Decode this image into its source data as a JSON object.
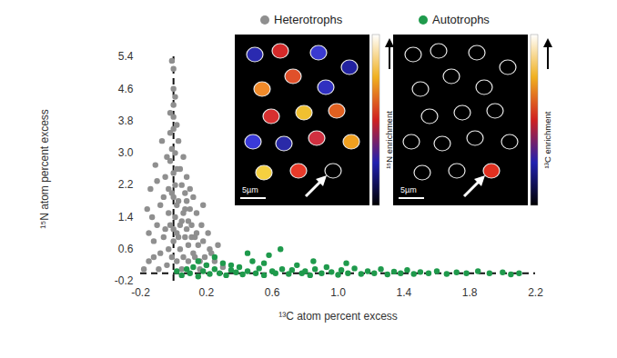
{
  "chart_data": {
    "type": "scatter",
    "x_label": "¹³C atom percent excess",
    "y_label": "¹⁵N atom percent excess",
    "xlim": [
      -0.2,
      2.2
    ],
    "ylim": [
      -0.2,
      5.4
    ],
    "xticks": [
      -0.2,
      0.2,
      0.6,
      {
        "value": 1,
        "label": "1.0"
      },
      1.4,
      1.8,
      2.2
    ],
    "yticks": [
      -0.2,
      0.6,
      1.4,
      2.2,
      {
        "value": 3,
        "label": "3.0"
      },
      3.8,
      4.6,
      5.4
    ],
    "grid": false,
    "legend": "top",
    "reference_lines": [
      {
        "axis": "x",
        "value": 0,
        "line_style": "dashed"
      },
      {
        "axis": "y",
        "value": 0,
        "line_style": "dashed"
      }
    ],
    "series": [
      {
        "name": "Heterotrophs",
        "color": "#8f8f8f",
        "marker": "circle",
        "x": [
          -0.15,
          -0.12,
          -0.1,
          -0.08,
          -0.06,
          -0.05,
          -0.04,
          -0.03,
          -0.02,
          -0.01,
          0.0,
          0.0,
          0.0,
          0.01,
          0.02,
          0.03,
          0.04,
          0.05,
          0.06,
          0.07,
          0.08,
          0.09,
          0.1,
          0.12,
          0.14,
          0.16,
          0.18,
          0.2,
          0.22,
          0.25,
          0.3,
          -0.18,
          -0.16,
          -0.14,
          -0.13,
          -0.11,
          -0.09,
          -0.07,
          -0.06,
          -0.05,
          -0.04,
          -0.03,
          -0.02,
          -0.02,
          -0.01,
          -0.01,
          0.0,
          0.0,
          0.0,
          0.0,
          0.01,
          0.01,
          0.02,
          0.02,
          0.03,
          0.03,
          0.04,
          0.04,
          0.05,
          0.05,
          0.06,
          0.06,
          0.07,
          0.08,
          0.08,
          0.09,
          0.1,
          0.11,
          0.11,
          0.12,
          0.13,
          0.14,
          0.15,
          0.17,
          0.19,
          0.21,
          0.23,
          0.27,
          -0.1,
          -0.08,
          -0.12,
          -0.15,
          0.0,
          0.0,
          -0.03,
          0.02,
          0.07,
          0.09,
          0.13,
          0.16,
          0.18,
          -0.02,
          0.01,
          -0.01,
          0.02
        ],
        "values": [
          0.3,
          0.8,
          1.2,
          0.5,
          1.9,
          2.4,
          0.2,
          1.5,
          2.8,
          3.1,
          3.6,
          4.2,
          5.1,
          2.2,
          1.7,
          0.9,
          2.6,
          1.3,
          0.4,
          2.0,
          1.1,
          0.7,
          1.6,
          0.5,
          1.0,
          0.3,
          0.8,
          0.2,
          0.6,
          0.3,
          0.15,
          0.1,
          1.6,
          2.1,
          1.4,
          2.7,
          0.1,
          3.3,
          0.9,
          1.1,
          2.9,
          0.6,
          3.5,
          1.2,
          0.4,
          2.0,
          0.8,
          2.5,
          3.9,
          4.6,
          1.4,
          3.0,
          0.3,
          2.6,
          1.8,
          3.3,
          0.6,
          1.2,
          2.2,
          0.1,
          1.5,
          2.9,
          0.9,
          1.8,
          2.4,
          0.3,
          2.1,
          1.2,
          0.9,
          1.9,
          0.4,
          1.5,
          0.7,
          1.2,
          0.4,
          1.0,
          0.5,
          0.7,
          2.3,
          1.7,
          0.4,
          1.0,
          1.1,
          1.9,
          2.1,
          1.0,
          1.6,
          1.3,
          0.9,
          0.1,
          1.7,
          4.0,
          4.4,
          5.3,
          3.7
        ]
      },
      {
        "name": "Autotrophs",
        "color": "#1f9a4c",
        "marker": "circle",
        "x": [
          0.02,
          0.05,
          0.08,
          0.1,
          0.12,
          0.15,
          0.18,
          0.2,
          0.22,
          0.25,
          0.28,
          0.3,
          0.32,
          0.35,
          0.38,
          0.4,
          0.42,
          0.45,
          0.48,
          0.5,
          0.52,
          0.55,
          0.58,
          0.6,
          0.62,
          0.65,
          0.66,
          0.7,
          0.72,
          0.75,
          0.78,
          0.8,
          0.83,
          0.86,
          0.9,
          0.93,
          0.96,
          1.0,
          1.02,
          1.06,
          1.1,
          1.14,
          1.18,
          1.22,
          1.26,
          1.3,
          1.34,
          1.38,
          1.42,
          1.46,
          1.5,
          1.55,
          1.6,
          1.66,
          1.72,
          1.78,
          1.85,
          1.92,
          2.0,
          2.05,
          2.1,
          0.15,
          0.25,
          0.45,
          0.35,
          0.55,
          0.85,
          1.05
        ],
        "values": [
          0.05,
          -0.05,
          0.1,
          0.0,
          0.15,
          -0.08,
          0.05,
          0.2,
          -0.02,
          0.1,
          0.0,
          0.25,
          -0.05,
          0.08,
          0.02,
          0.15,
          -0.03,
          0.05,
          0.3,
          0.0,
          0.12,
          -0.05,
          0.45,
          0.05,
          0.0,
          0.6,
          0.1,
          -0.02,
          0.08,
          0.2,
          0.0,
          0.05,
          -0.05,
          0.1,
          0.0,
          0.15,
          0.03,
          -0.04,
          0.08,
          0.0,
          0.12,
          -0.02,
          0.05,
          0.0,
          0.1,
          -0.03,
          0.04,
          0.0,
          0.08,
          -0.02,
          0.03,
          0.0,
          0.05,
          -0.02,
          0.02,
          0.0,
          0.05,
          0.0,
          0.02,
          -0.03,
          0.0,
          0.3,
          0.4,
          0.5,
          0.2,
          0.25,
          0.3,
          0.25
        ]
      }
    ],
    "insets": [
      {
        "series": "Heterotrophs",
        "colorbar_label": "¹⁵N enrichment",
        "scale_bar": "5µm"
      },
      {
        "series": "Autotrophs",
        "colorbar_label": "¹³C enrichment",
        "scale_bar": "5µm"
      }
    ]
  }
}
